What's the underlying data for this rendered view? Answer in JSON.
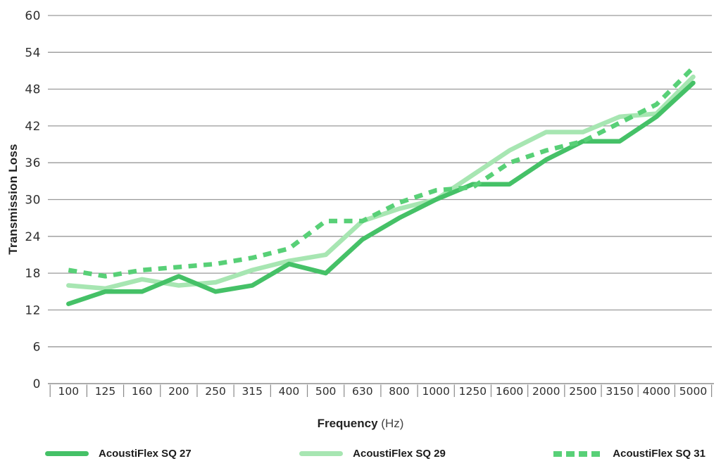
{
  "chart_data": {
    "type": "line",
    "title": "",
    "xlabel": "Frequency (Hz)",
    "xlabel_main": "Frequency",
    "xlabel_unit": "(Hz)",
    "ylabel": "Transmission Loss",
    "ylim": [
      0,
      60
    ],
    "yticks": [
      0,
      6,
      12,
      18,
      24,
      30,
      36,
      42,
      48,
      54,
      60
    ],
    "grid": true,
    "legend_position": "bottom",
    "categories": [
      "100",
      "125",
      "160",
      "200",
      "250",
      "315",
      "400",
      "500",
      "630",
      "800",
      "1000",
      "1250",
      "1600",
      "2000",
      "2500",
      "3150",
      "4000",
      "5000"
    ],
    "series": [
      {
        "name": "AcoustiFlex SQ 27",
        "style": "solid",
        "color": "#45c167",
        "values": [
          13,
          15,
          15,
          17.5,
          15,
          16,
          19.5,
          18,
          23.5,
          27,
          30,
          32.5,
          32.5,
          36.5,
          39.5,
          39.5,
          43.5,
          49
        ]
      },
      {
        "name": "AcoustiFlex SQ 29",
        "style": "solid",
        "color": "#a7e6b2",
        "values": [
          16,
          15.5,
          17,
          16,
          16.5,
          18.5,
          20,
          21,
          26.5,
          28.5,
          30,
          34,
          38,
          41,
          41,
          43.5,
          44,
          50
        ]
      },
      {
        "name": "AcoustiFlex SQ 31",
        "style": "dashed",
        "color": "#58d077",
        "values": [
          18.5,
          17.5,
          18.5,
          19,
          19.5,
          20.5,
          22,
          26.5,
          26.5,
          29.5,
          31.5,
          32,
          36,
          38,
          39.5,
          42.5,
          45.5,
          51.5
        ]
      }
    ]
  }
}
